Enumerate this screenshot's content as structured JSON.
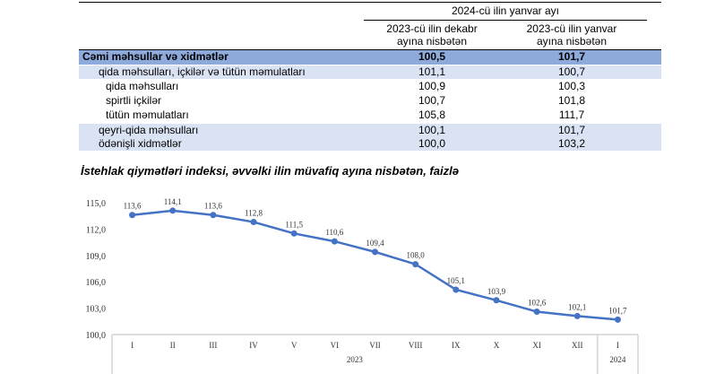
{
  "table": {
    "header_group": "2024-cü ilin yanvar ayı",
    "col1": [
      "2023-cü ilin dekabr",
      "ayına nisbətən"
    ],
    "col2": [
      "2023-cü ilin yanvar",
      "ayına nisbətən"
    ],
    "rows": [
      {
        "label": "Cəmi məhsullar və xidmətlər",
        "v1": "100,5",
        "v2": "101,7"
      },
      {
        "label": "qida məhsulları, içkilər və tütün məmulatları",
        "v1": "101,1",
        "v2": "100,7"
      },
      {
        "label": "qida məhsulları",
        "v1": "100,9",
        "v2": "100,3"
      },
      {
        "label": "spirtli içkilər",
        "v1": "100,7",
        "v2": "101,8"
      },
      {
        "label": "tütün məmulatları",
        "v1": "105,8",
        "v2": "111,7"
      },
      {
        "label": "qeyri-qida məhsulları",
        "v1": "100,1",
        "v2": "101,7"
      },
      {
        "label": "ödənişli xidmətlər",
        "v1": "100,0",
        "v2": "103,2"
      }
    ]
  },
  "chart_data": {
    "type": "line",
    "title": "İstehlak qiymətləri indeksi, əvvəlki ilin müvafiq ayına nisbətən, faizlə",
    "categories": [
      "I",
      "II",
      "III",
      "IV",
      "V",
      "VI",
      "VII",
      "VIII",
      "IX",
      "X",
      "XI",
      "XII",
      "I"
    ],
    "groups": [
      {
        "label": "2023",
        "count": 12
      },
      {
        "label": "2024",
        "count": 1
      }
    ],
    "values": [
      113.6,
      114.1,
      113.6,
      112.8,
      111.5,
      110.6,
      109.4,
      108.0,
      105.1,
      103.9,
      102.6,
      102.1,
      101.7
    ],
    "data_labels": [
      "113,6",
      "114,1",
      "113,6",
      "112,8",
      "111,5",
      "110,6",
      "109,4",
      "108,0",
      "105,1",
      "103,9",
      "102,6",
      "102,1",
      "101,7"
    ],
    "yticks": [
      "100,0",
      "103,0",
      "106,0",
      "109,0",
      "112,0",
      "115,0"
    ],
    "ylim": [
      100,
      115
    ],
    "color": "#4472c4"
  }
}
